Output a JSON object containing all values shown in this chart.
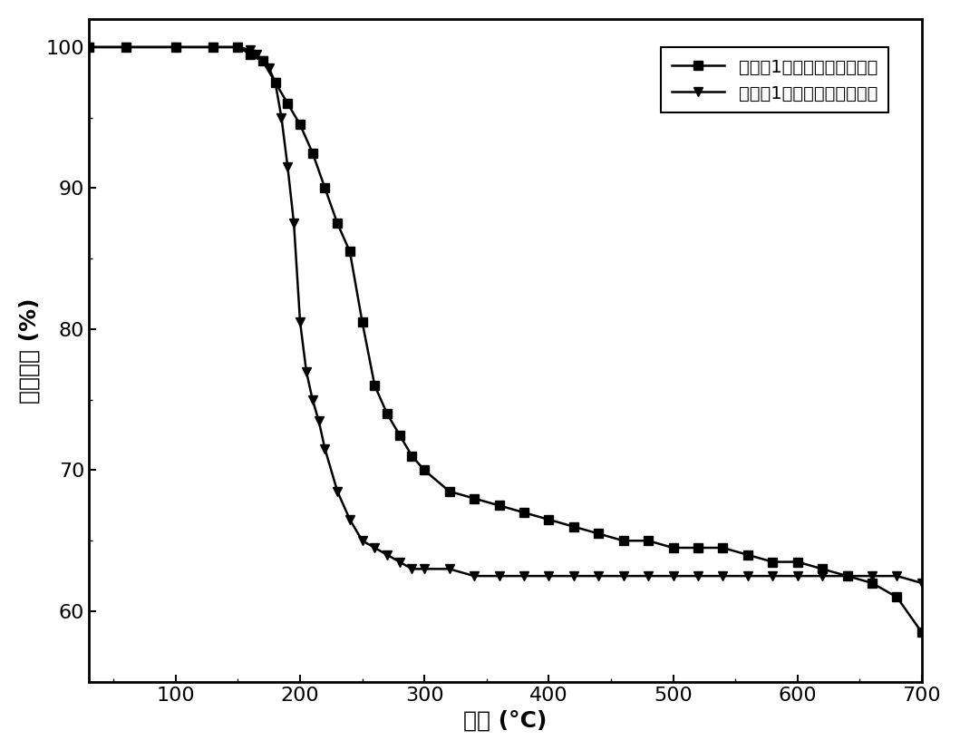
{
  "title": "",
  "xlabel": "温度 (°C)",
  "ylabel": "残留质量 (%)",
  "xlim": [
    30,
    700
  ],
  "ylim": [
    55,
    102
  ],
  "xticks": [
    100,
    200,
    300,
    400,
    500,
    600,
    700
  ],
  "yticks": [
    60,
    70,
    80,
    90,
    100
  ],
  "legend1_label": "实施例1制备的功能化石墨烯",
  "legend2_label": "实施例1使用的原料膨胀石墨",
  "line_color": "#000000",
  "bg_color": "#ffffff",
  "series1_x": [
    30,
    60,
    100,
    130,
    150,
    160,
    170,
    180,
    190,
    200,
    210,
    220,
    230,
    240,
    250,
    260,
    270,
    280,
    290,
    300,
    320,
    340,
    360,
    380,
    400,
    420,
    440,
    460,
    480,
    500,
    520,
    540,
    560,
    580,
    600,
    620,
    640,
    660,
    680,
    700
  ],
  "series1_y": [
    100,
    100,
    100,
    100,
    100,
    99.5,
    99.0,
    97.5,
    96.0,
    94.5,
    92.5,
    90.0,
    87.5,
    85.5,
    80.5,
    76.0,
    74.0,
    72.5,
    71.0,
    70.0,
    68.5,
    68.0,
    67.5,
    67.0,
    66.5,
    66.0,
    65.5,
    65.0,
    65.0,
    64.5,
    64.5,
    64.5,
    64.0,
    63.5,
    63.5,
    63.0,
    62.5,
    62.0,
    61.0,
    58.5
  ],
  "series2_x": [
    30,
    60,
    100,
    130,
    150,
    160,
    165,
    170,
    175,
    180,
    185,
    190,
    195,
    200,
    205,
    210,
    215,
    220,
    230,
    240,
    250,
    260,
    270,
    280,
    290,
    300,
    320,
    340,
    360,
    380,
    400,
    420,
    440,
    460,
    480,
    500,
    520,
    540,
    560,
    580,
    600,
    620,
    640,
    660,
    680,
    700
  ],
  "series2_y": [
    100,
    100,
    100,
    100,
    100,
    99.8,
    99.5,
    99.0,
    98.5,
    97.5,
    95.0,
    91.5,
    87.5,
    80.5,
    77.0,
    75.0,
    73.5,
    71.5,
    68.5,
    66.5,
    65.0,
    64.5,
    64.0,
    63.5,
    63.0,
    63.0,
    63.0,
    62.5,
    62.5,
    62.5,
    62.5,
    62.5,
    62.5,
    62.5,
    62.5,
    62.5,
    62.5,
    62.5,
    62.5,
    62.5,
    62.5,
    62.5,
    62.5,
    62.5,
    62.5,
    62.0
  ]
}
